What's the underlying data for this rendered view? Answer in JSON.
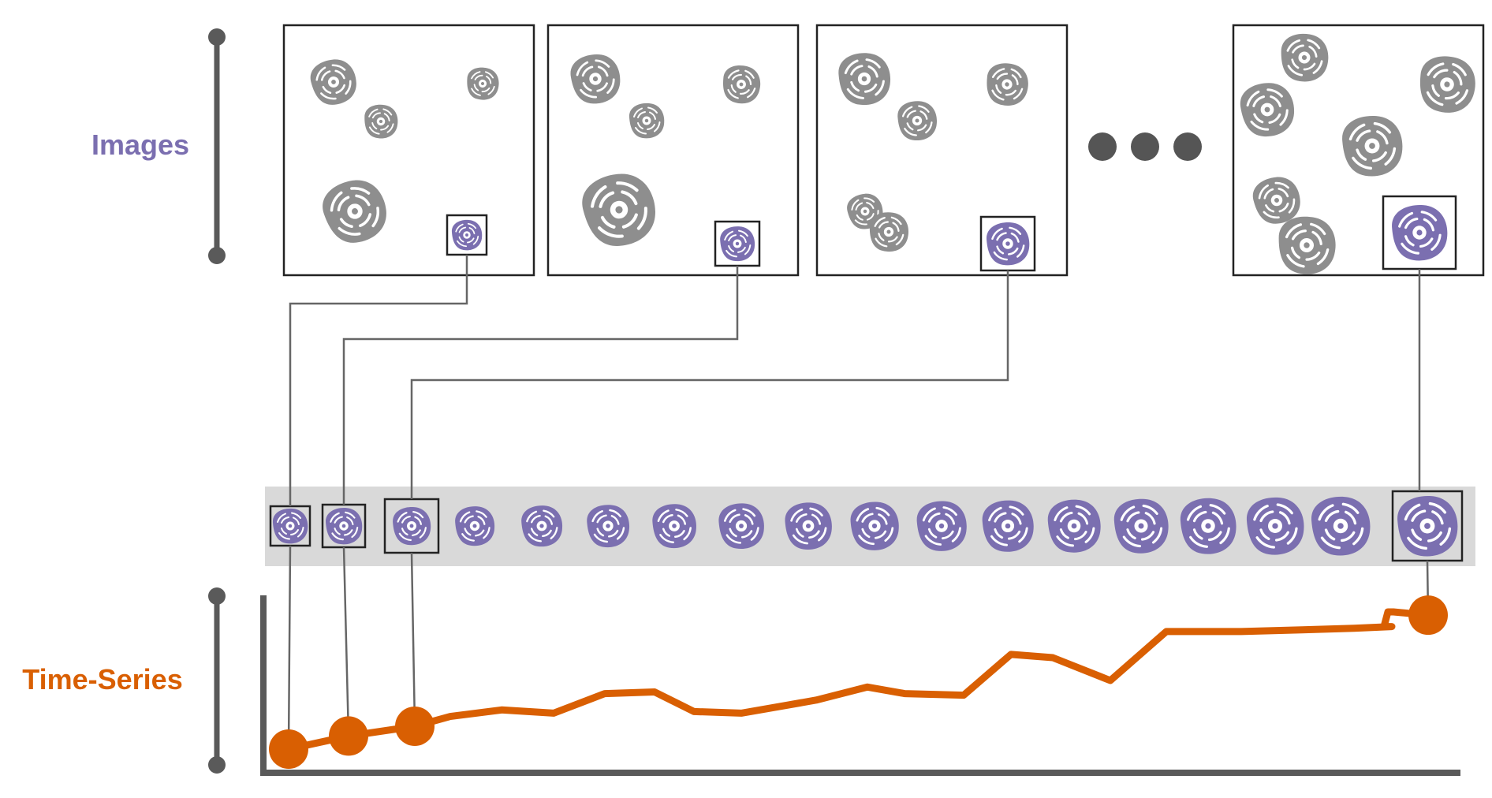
{
  "labels": {
    "images": "Images",
    "time_series": "Time-Series"
  },
  "colors": {
    "images_label": "#7b6fb0",
    "time_series_label": "#d95f02",
    "cell_highlight": "#7b6fb0",
    "cell_background": "#8e8e8e",
    "series_line": "#d95f02",
    "axis": "#5a5a5a",
    "connector": "#666666",
    "strip_band": "#d9d9d9",
    "frame_border": "#222222"
  },
  "icons": {
    "frame_cell": "cell-icon",
    "ellipsis": "ellipsis-icon"
  },
  "chart_data": {
    "type": "line",
    "title": "",
    "xlabel": "",
    "ylabel": "",
    "x": [
      1,
      2,
      3,
      4,
      5,
      6,
      7,
      8,
      9,
      10,
      11,
      12,
      13,
      14,
      15,
      16,
      17,
      18,
      19,
      20,
      21,
      22,
      23,
      24,
      25,
      26
    ],
    "values": [
      0.0,
      0.08,
      0.14,
      0.2,
      0.24,
      0.22,
      0.34,
      0.35,
      0.23,
      0.22,
      0.3,
      0.38,
      0.34,
      0.33,
      0.58,
      0.56,
      0.42,
      0.72,
      0.72,
      0.73,
      0.74,
      0.75,
      0.75,
      0.84,
      0.84,
      0.82
    ],
    "highlighted_points": [
      0,
      1,
      2,
      25
    ],
    "grid": false,
    "legend": "none"
  }
}
